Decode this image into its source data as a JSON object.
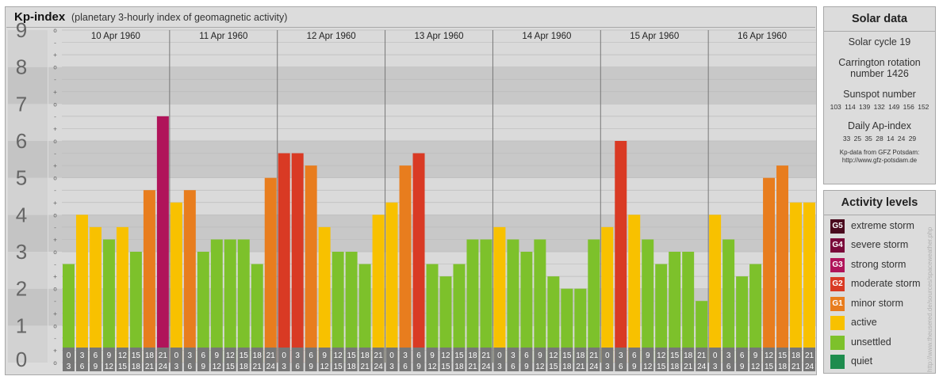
{
  "header": {
    "title": "Kp-index",
    "subtitle": "(planetary 3-hourly index of geomagnetic activity)"
  },
  "chart_data": {
    "type": "bar",
    "ylim": [
      0,
      9
    ],
    "y_ticks": [
      "0",
      "1",
      "2",
      "3",
      "4",
      "5",
      "6",
      "7",
      "8",
      "9"
    ],
    "minor_ticks": [
      "o",
      "+",
      "-"
    ],
    "days": [
      "10 Apr 1960",
      "11 Apr 1960",
      "12 Apr 1960",
      "13 Apr 1960",
      "14 Apr 1960",
      "15 Apr 1960",
      "16 Apr 1960"
    ],
    "interval_labels": [
      [
        "0",
        "3"
      ],
      [
        "3",
        "6"
      ],
      [
        "6",
        "9"
      ],
      [
        "9",
        "12"
      ],
      [
        "12",
        "15"
      ],
      [
        "15",
        "18"
      ],
      [
        "18",
        "21"
      ],
      [
        "21",
        "24"
      ]
    ],
    "values": [
      [
        2.667,
        4.0,
        3.667,
        3.333,
        3.667,
        3.0,
        4.667,
        6.667
      ],
      [
        4.333,
        4.667,
        3.0,
        3.333,
        3.333,
        3.333,
        2.667,
        5.0
      ],
      [
        5.667,
        5.667,
        5.333,
        3.667,
        3.0,
        3.0,
        2.667,
        4.0
      ],
      [
        4.333,
        5.333,
        5.667,
        2.667,
        2.333,
        2.667,
        3.333,
        3.333
      ],
      [
        3.667,
        3.333,
        3.0,
        3.333,
        2.333,
        2.0,
        2.0,
        3.333
      ],
      [
        3.667,
        6.0,
        4.0,
        3.333,
        2.667,
        3.0,
        3.0,
        1.667
      ],
      [
        4.0,
        3.333,
        2.333,
        2.667,
        5.0,
        5.333,
        4.333,
        4.333
      ]
    ],
    "colors": {
      "quiet": "#1e8c4e",
      "unsettled": "#7dc12b",
      "active": "#f8c100",
      "minor": "#e87d1e",
      "moderate": "#d93a24",
      "strong": "#b0145a",
      "severe": "#7a0a3a",
      "extreme": "#4a0a1e"
    }
  },
  "solar": {
    "title": "Solar data",
    "cycle": "Solar cycle 19",
    "carrington_line1": "Carrington rotation",
    "carrington_line2": "number 1426",
    "sunspot_title": "Sunspot number",
    "sunspot_values": "103 114 139 132 149 156 152",
    "ap_title": "Daily Ap-index",
    "ap_values": "33 25 35 28 14 24 29",
    "credit_line1": "Kp-data from GFZ Potsdam:",
    "credit_line2": "http://www.gfz-potsdam.de"
  },
  "activity": {
    "title": "Activity levels",
    "levels": [
      {
        "code": "G5",
        "label": "extreme storm",
        "color": "#4a0a1e"
      },
      {
        "code": "G4",
        "label": "severe storm",
        "color": "#7a0a3a"
      },
      {
        "code": "G3",
        "label": "strong storm",
        "color": "#b0145a"
      },
      {
        "code": "G2",
        "label": "moderate storm",
        "color": "#d93a24"
      },
      {
        "code": "G1",
        "label": "minor storm",
        "color": "#e87d1e"
      },
      {
        "code": "",
        "label": "active",
        "color": "#f8c100"
      },
      {
        "code": "",
        "label": "unsettled",
        "color": "#7dc12b"
      },
      {
        "code": "",
        "label": "quiet",
        "color": "#1e8c4e"
      }
    ]
  },
  "watermark": "http://www.theusered.de/sources/spaceweather.php"
}
